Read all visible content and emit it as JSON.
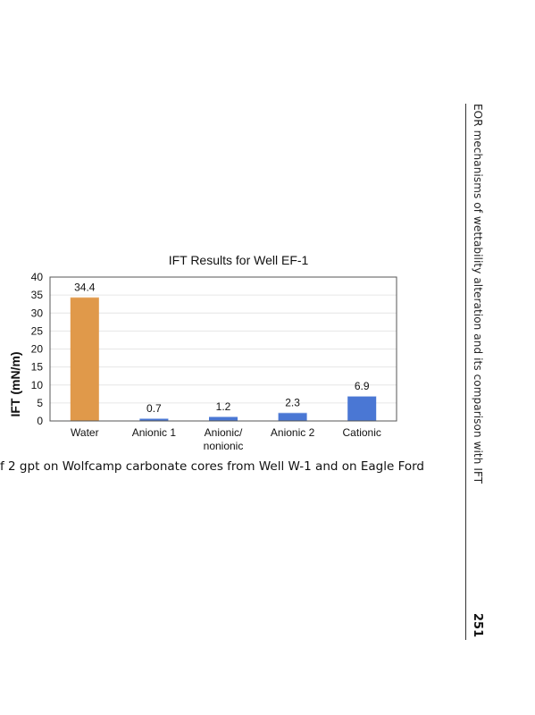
{
  "running_head": "EOR mechanisms of wettability alteration and its comparison with IFT",
  "page_number": "251",
  "caption_fragment": "f 2 gpt on Wolfcamp carbonate cores from Well W-1 and on Eagle Ford",
  "chart_data": {
    "type": "bar",
    "title": "IFT Results for Well EF-1",
    "ylabel": "IFT (mN/m)",
    "xlabel": "",
    "ylim": [
      0,
      40
    ],
    "yticks": [
      "0",
      "5",
      "10",
      "15",
      "20",
      "25",
      "30",
      "35",
      "40"
    ],
    "grid": true,
    "categories": [
      "Water",
      "Anionic 1",
      "Anionic/\nnonionic",
      "Anionic 2",
      "Cationic"
    ],
    "values": [
      34.4,
      0.7,
      1.2,
      2.3,
      6.9
    ],
    "value_labels": [
      "34.4",
      "0.7",
      "1.2",
      "2.3",
      "6.9"
    ],
    "colors": [
      "#E0994A",
      "#4A77D4",
      "#4A77D4",
      "#4A77D4",
      "#4A77D4"
    ]
  }
}
